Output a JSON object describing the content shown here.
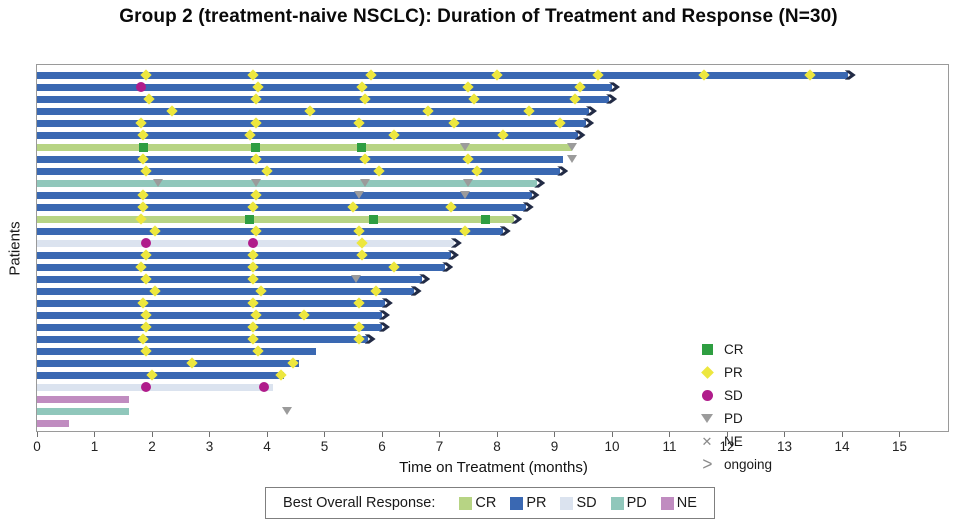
{
  "chart_data": {
    "type": "swimmer",
    "title": "Group 2 (treatment-naive NSCLC): Duration of Treatment and Response (N=30)",
    "xlabel": "Time on Treatment (months)",
    "ylabel": "Patients",
    "x_ticks": [
      0,
      1,
      2,
      3,
      4,
      5,
      6,
      7,
      8,
      9,
      10,
      11,
      12,
      13,
      14,
      15
    ],
    "xlim": [
      0,
      15.87
    ],
    "grid": false,
    "marker_legend": [
      {
        "symbol": "CR",
        "label": "CR"
      },
      {
        "symbol": "PR",
        "label": "PR"
      },
      {
        "symbol": "SD",
        "label": "SD"
      },
      {
        "symbol": "PD",
        "label": "PD"
      },
      {
        "symbol": "NE",
        "label": "NE"
      },
      {
        "symbol": "ongoing",
        "label": "ongoing"
      }
    ],
    "bar_legend": {
      "title": "Best Overall Response:",
      "items": [
        {
          "key": "CR",
          "label": "CR"
        },
        {
          "key": "PR",
          "label": "PR"
        },
        {
          "key": "SD",
          "label": "SD"
        },
        {
          "key": "PD",
          "label": "PD"
        },
        {
          "key": "NE",
          "label": "NE"
        }
      ]
    },
    "colors": {
      "bar_CR": "#b7d484",
      "bar_PR": "#3a68b2",
      "bar_SD": "#dbe3ef",
      "bar_PD": "#90c7bb",
      "bar_NE": "#c08cc0",
      "marker_CR": "#2e9e41",
      "marker_PR": "#ede73e",
      "marker_SD": "#b01c8b",
      "marker_PD": "#9b9b9b",
      "ne_x": "#8a8a8a",
      "arrow": "#222b45",
      "frame": "#9a9a9a"
    },
    "patients": [
      {
        "response": "PR",
        "months": 14.1,
        "ongoing": true,
        "events": [
          [
            "PR",
            1.9
          ],
          [
            "PR",
            3.75
          ],
          [
            "PR",
            5.8
          ],
          [
            "PR",
            8.0
          ],
          [
            "PR",
            9.75
          ],
          [
            "PR",
            11.6
          ],
          [
            "PR",
            13.45
          ]
        ]
      },
      {
        "response": "PR",
        "months": 10.0,
        "ongoing": true,
        "events": [
          [
            "SD",
            1.8
          ],
          [
            "PR",
            3.85
          ],
          [
            "PR",
            5.65
          ],
          [
            "PR",
            7.5
          ],
          [
            "PR",
            9.45
          ]
        ]
      },
      {
        "response": "PR",
        "months": 9.95,
        "ongoing": true,
        "events": [
          [
            "PR",
            1.95
          ],
          [
            "PR",
            3.8
          ],
          [
            "PR",
            5.7
          ],
          [
            "PR",
            7.6
          ],
          [
            "PR",
            9.35
          ]
        ]
      },
      {
        "response": "PR",
        "months": 9.6,
        "ongoing": true,
        "events": [
          [
            "PR",
            2.35
          ],
          [
            "PR",
            4.75
          ],
          [
            "PR",
            6.8
          ],
          [
            "PR",
            8.55
          ]
        ]
      },
      {
        "response": "PR",
        "months": 9.55,
        "ongoing": true,
        "events": [
          [
            "PR",
            1.8
          ],
          [
            "PR",
            3.8
          ],
          [
            "PR",
            5.6
          ],
          [
            "PR",
            7.25
          ],
          [
            "PR",
            9.1
          ]
        ]
      },
      {
        "response": "PR",
        "months": 9.4,
        "ongoing": true,
        "events": [
          [
            "PR",
            1.85
          ],
          [
            "PR",
            3.7
          ],
          [
            "PR",
            6.2
          ],
          [
            "PR",
            8.1
          ]
        ]
      },
      {
        "response": "CR",
        "months": 9.3,
        "ongoing": false,
        "events": [
          [
            "CR",
            1.85
          ],
          [
            "CR",
            3.8
          ],
          [
            "CR",
            5.65
          ],
          [
            "PD",
            7.45
          ],
          [
            "PD",
            9.3
          ]
        ]
      },
      {
        "response": "PR",
        "months": 9.15,
        "ongoing": false,
        "events": [
          [
            "PR",
            1.85
          ],
          [
            "PR",
            3.8
          ],
          [
            "PR",
            5.7
          ],
          [
            "PR",
            7.5
          ],
          [
            "PD",
            9.3
          ]
        ]
      },
      {
        "response": "PR",
        "months": 9.1,
        "ongoing": true,
        "events": [
          [
            "PR",
            1.9
          ],
          [
            "PR",
            4.0
          ],
          [
            "PR",
            5.95
          ],
          [
            "PR",
            7.65
          ]
        ]
      },
      {
        "response": "PD",
        "months": 8.7,
        "ongoing": true,
        "events": [
          [
            "PD",
            2.1
          ],
          [
            "PD",
            3.8
          ],
          [
            "PD",
            5.7
          ],
          [
            "PD",
            7.5
          ]
        ]
      },
      {
        "response": "PR",
        "months": 8.6,
        "ongoing": true,
        "events": [
          [
            "PR",
            1.85
          ],
          [
            "PR",
            3.8
          ],
          [
            "PD",
            5.6
          ],
          [
            "PD",
            7.45
          ]
        ]
      },
      {
        "response": "PR",
        "months": 8.5,
        "ongoing": true,
        "events": [
          [
            "PR",
            1.85
          ],
          [
            "PR",
            3.75
          ],
          [
            "PR",
            5.5
          ],
          [
            "PR",
            7.2
          ]
        ]
      },
      {
        "response": "CR",
        "months": 8.3,
        "ongoing": true,
        "events": [
          [
            "PR",
            1.8
          ],
          [
            "CR",
            3.7
          ],
          [
            "CR",
            5.85
          ],
          [
            "CR",
            7.8
          ]
        ]
      },
      {
        "response": "PR",
        "months": 8.1,
        "ongoing": true,
        "events": [
          [
            "PR",
            2.05
          ],
          [
            "PR",
            3.8
          ],
          [
            "PR",
            5.6
          ],
          [
            "PR",
            7.45
          ]
        ]
      },
      {
        "response": "SD",
        "months": 7.25,
        "ongoing": true,
        "events": [
          [
            "SD",
            1.9
          ],
          [
            "SD",
            3.75
          ],
          [
            "PR",
            5.65
          ]
        ]
      },
      {
        "response": "PR",
        "months": 7.2,
        "ongoing": true,
        "events": [
          [
            "PR",
            1.9
          ],
          [
            "PR",
            3.75
          ],
          [
            "PR",
            5.65
          ]
        ]
      },
      {
        "response": "PR",
        "months": 7.1,
        "ongoing": true,
        "events": [
          [
            "PR",
            1.8
          ],
          [
            "PR",
            3.75
          ],
          [
            "PR",
            6.2
          ]
        ]
      },
      {
        "response": "PR",
        "months": 6.7,
        "ongoing": true,
        "events": [
          [
            "PR",
            1.9
          ],
          [
            "PR",
            3.75
          ],
          [
            "PD",
            5.55
          ]
        ]
      },
      {
        "response": "PR",
        "months": 6.55,
        "ongoing": true,
        "events": [
          [
            "PR",
            2.05
          ],
          [
            "PR",
            3.9
          ],
          [
            "PR",
            5.9
          ]
        ]
      },
      {
        "response": "PR",
        "months": 6.05,
        "ongoing": true,
        "events": [
          [
            "PR",
            1.85
          ],
          [
            "PR",
            3.75
          ],
          [
            "PR",
            5.6
          ]
        ]
      },
      {
        "response": "PR",
        "months": 6.0,
        "ongoing": true,
        "events": [
          [
            "PR",
            1.9
          ],
          [
            "PR",
            3.8
          ],
          [
            "PR",
            4.65
          ]
        ]
      },
      {
        "response": "PR",
        "months": 6.0,
        "ongoing": true,
        "events": [
          [
            "PR",
            1.9
          ],
          [
            "PR",
            3.75
          ],
          [
            "PR",
            5.6
          ]
        ]
      },
      {
        "response": "PR",
        "months": 5.75,
        "ongoing": true,
        "events": [
          [
            "PR",
            1.85
          ],
          [
            "PR",
            3.75
          ],
          [
            "PR",
            5.6
          ]
        ]
      },
      {
        "response": "PR",
        "months": 4.85,
        "ongoing": false,
        "events": [
          [
            "PR",
            1.9
          ],
          [
            "PR",
            3.85
          ]
        ]
      },
      {
        "response": "PR",
        "months": 4.55,
        "ongoing": false,
        "events": [
          [
            "PR",
            2.7
          ],
          [
            "PR",
            4.45
          ]
        ]
      },
      {
        "response": "PR",
        "months": 4.3,
        "ongoing": false,
        "events": [
          [
            "PR",
            2.0
          ],
          [
            "PR",
            4.25
          ]
        ]
      },
      {
        "response": "SD",
        "months": 4.1,
        "ongoing": false,
        "events": [
          [
            "SD",
            1.9
          ],
          [
            "SD",
            3.95
          ]
        ]
      },
      {
        "response": "NE",
        "months": 1.6,
        "ongoing": false,
        "events": []
      },
      {
        "response": "PD",
        "months": 1.6,
        "ongoing": false,
        "events": [
          [
            "PD",
            4.35
          ]
        ]
      },
      {
        "response": "NE",
        "months": 0.55,
        "ongoing": false,
        "events": []
      }
    ]
  }
}
